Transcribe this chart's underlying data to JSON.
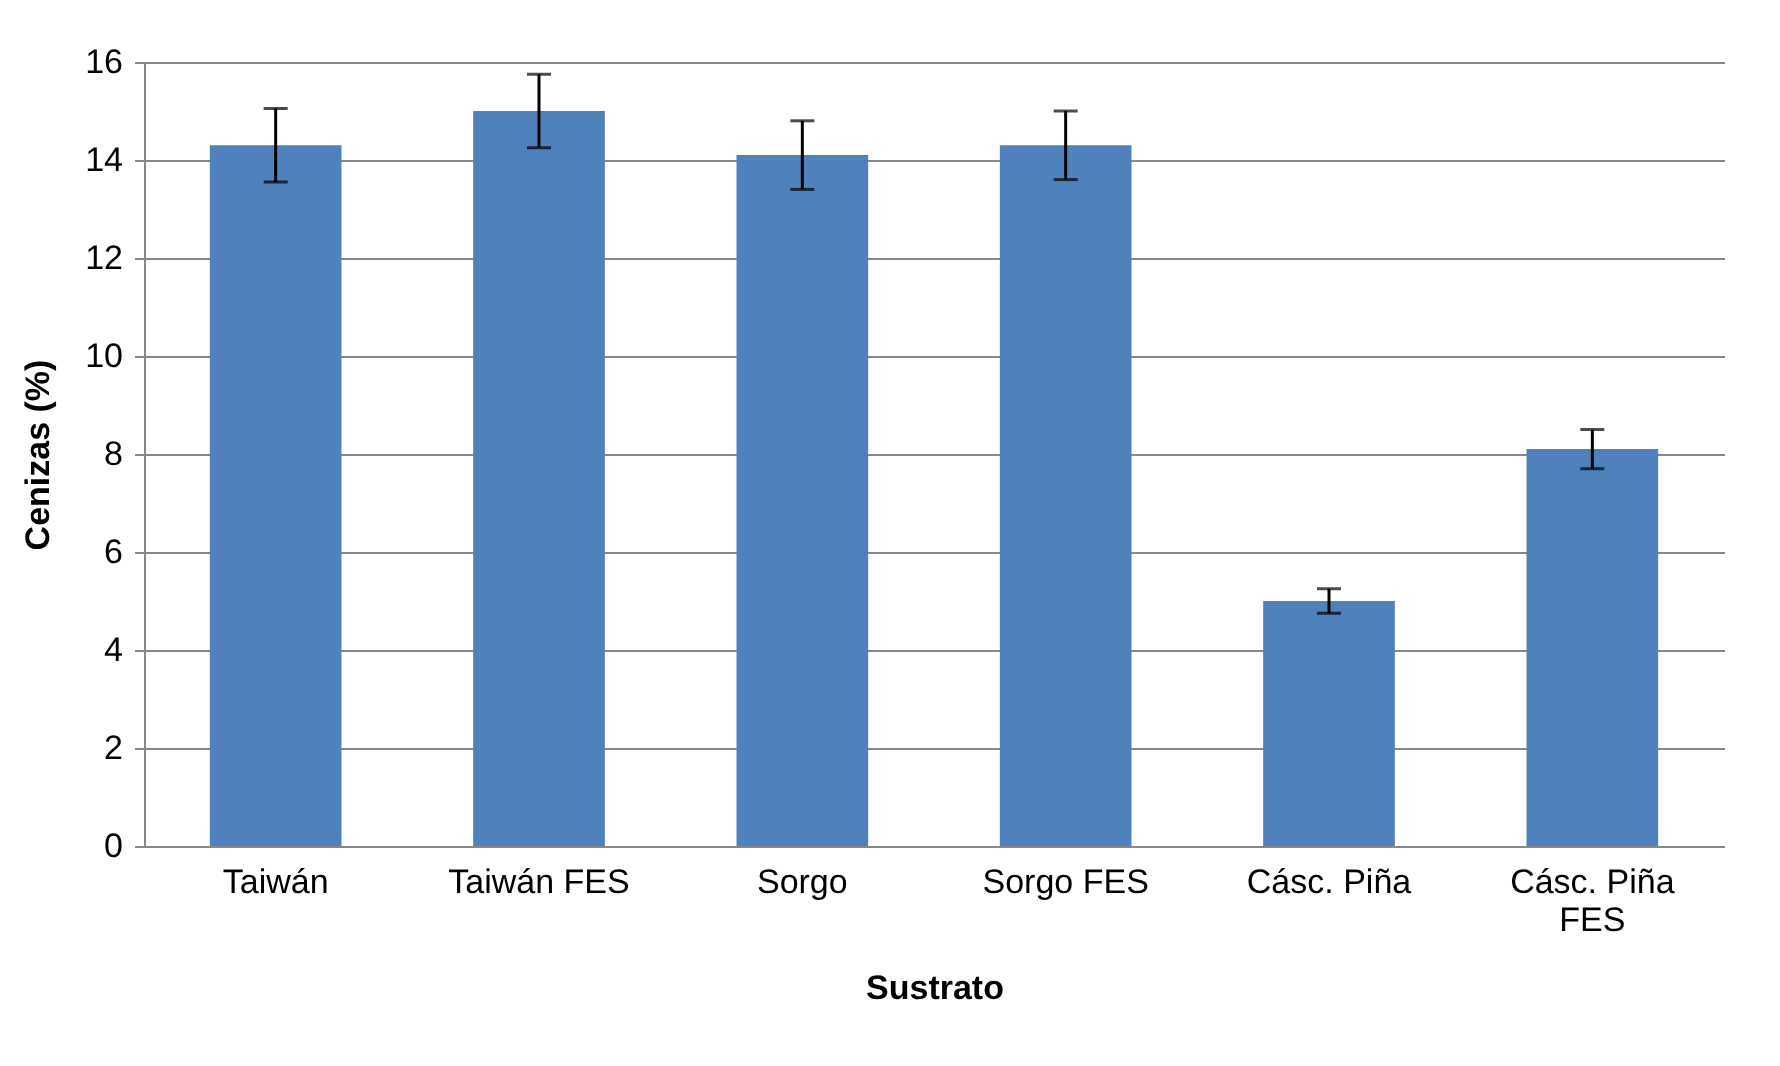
{
  "chart_data": {
    "type": "bar",
    "xlabel": "Sustrato",
    "ylabel": "Cenizas (%)",
    "categories": [
      "Taiwán",
      "Taiwán FES",
      "Sorgo",
      "Sorgo FES",
      "Cásc. Piña",
      "Cásc. Piña FES"
    ],
    "values": [
      14.3,
      15.0,
      14.1,
      14.3,
      5.0,
      8.1
    ],
    "errors": [
      0.75,
      0.75,
      0.7,
      0.7,
      0.25,
      0.4
    ],
    "color": "#4f81bd",
    "ylim": [
      0,
      16
    ],
    "yticks": [
      0,
      2,
      4,
      6,
      8,
      10,
      12,
      14,
      16
    ],
    "grid": "y"
  }
}
